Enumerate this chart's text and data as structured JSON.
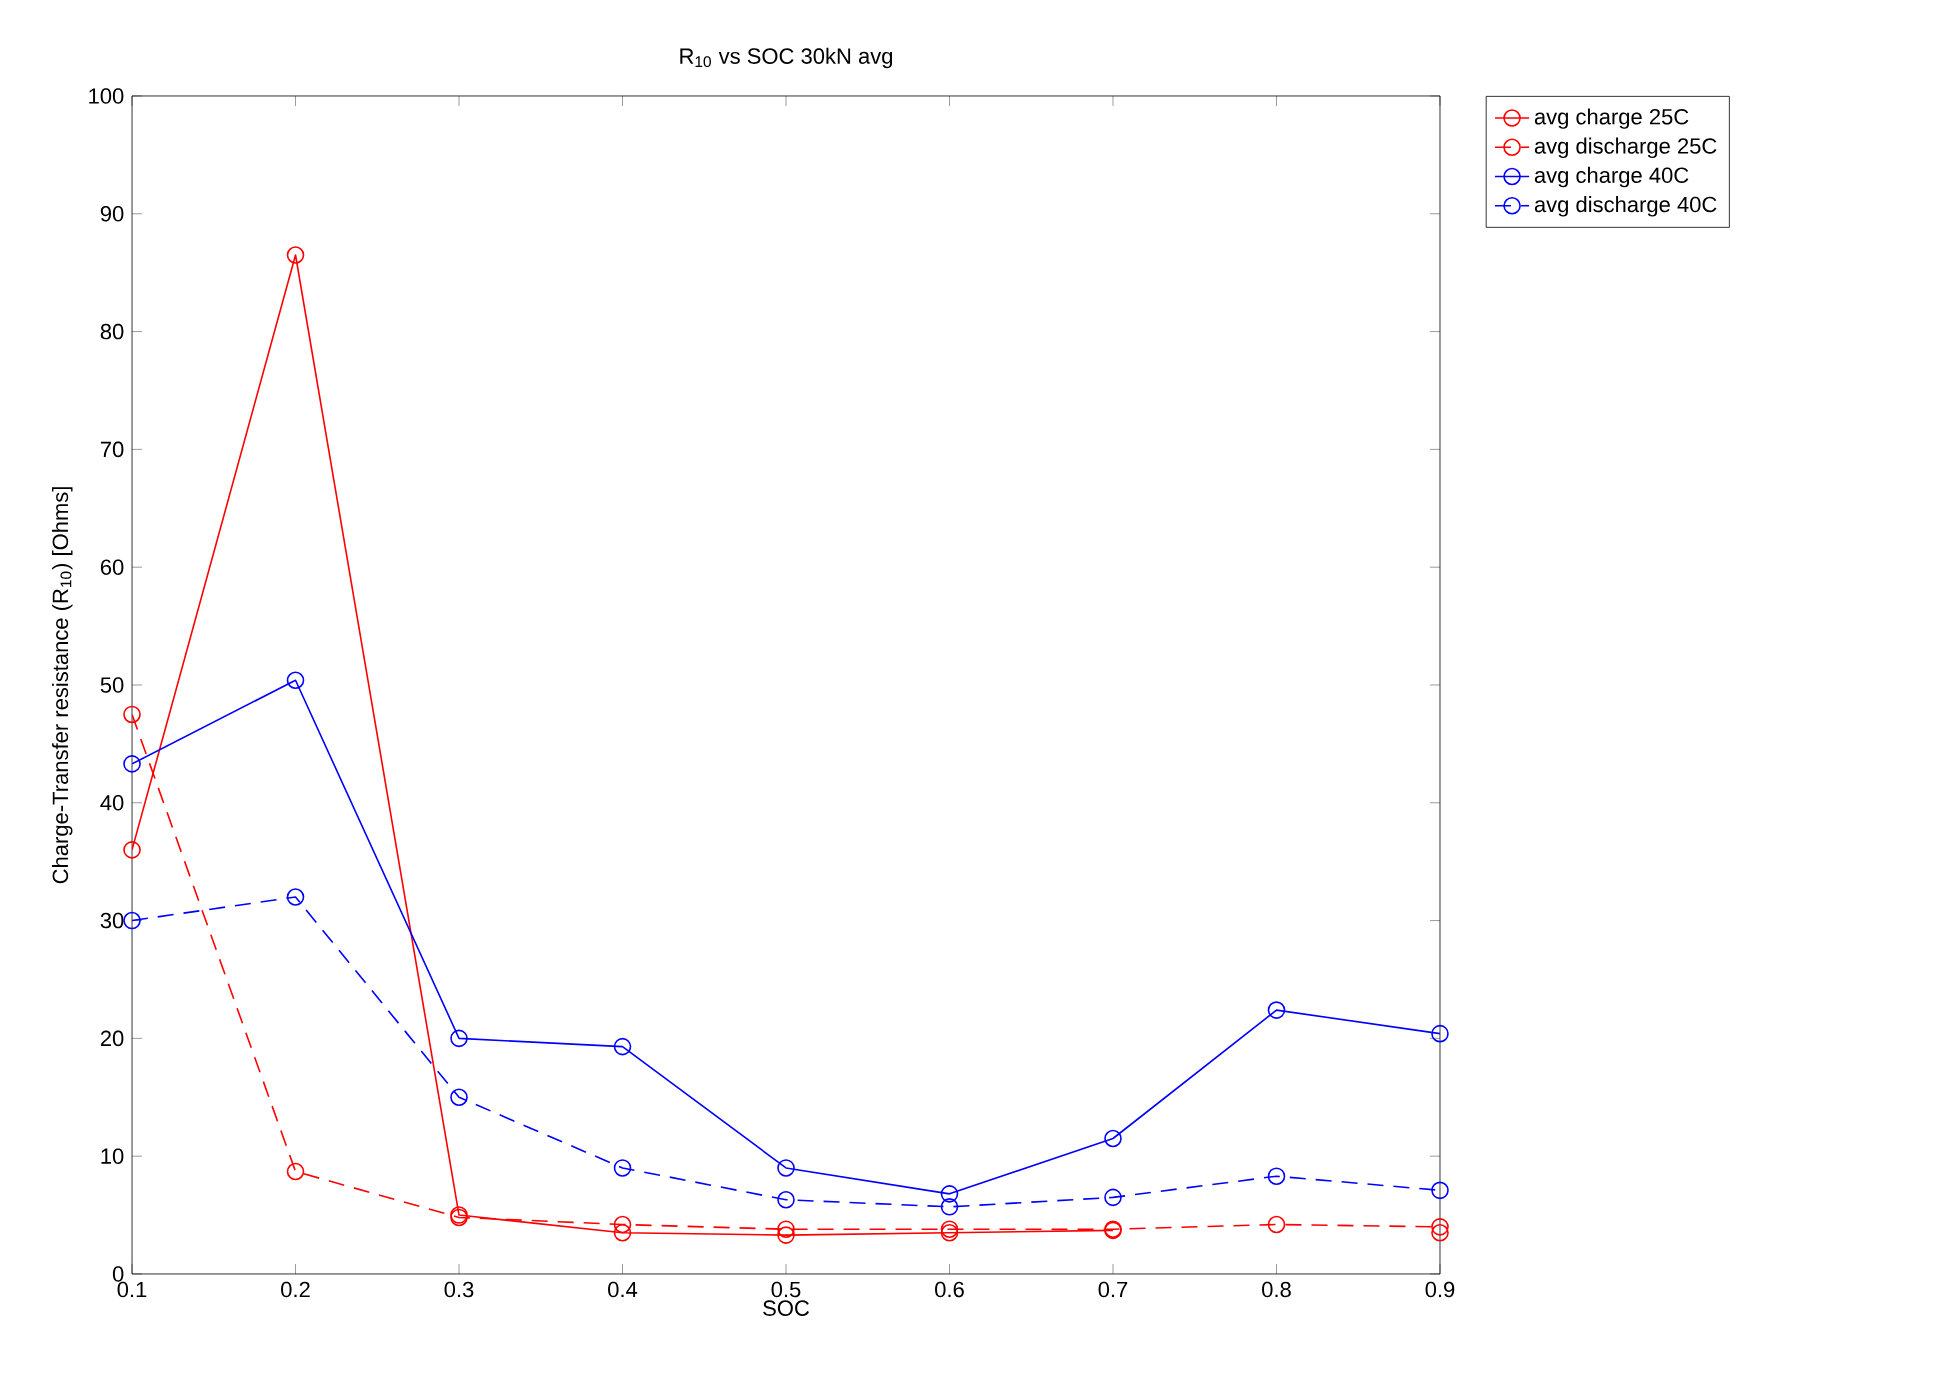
{
  "chart_data": {
    "type": "line",
    "title": "R$_{10}$ vs SOC 30kN avg",
    "xlabel": "SOC",
    "ylabel": "Charge-Transfer resistance (R$_{10}$) [Ohms]",
    "x": [
      0.1,
      0.2,
      0.3,
      0.4,
      0.5,
      0.6,
      0.7,
      0.8,
      0.9
    ],
    "series": [
      {
        "name": "avg charge 25C",
        "color": "#ff0000",
        "line_style": "solid",
        "values": [
          36,
          86.5,
          5,
          3.5,
          3.3,
          3.5,
          3.7,
          null,
          3.5
        ]
      },
      {
        "name": "avg discharge 25C",
        "color": "#ff0000",
        "line_style": "dashed",
        "values": [
          47.5,
          8.7,
          4.8,
          4.2,
          3.8,
          3.8,
          3.8,
          4.2,
          4.0
        ]
      },
      {
        "name": "avg charge 40C",
        "color": "#0000ff",
        "line_style": "solid",
        "values": [
          43.3,
          50.4,
          20,
          19.3,
          9,
          6.8,
          11.5,
          22.4,
          20.4
        ]
      },
      {
        "name": "avg discharge 40C",
        "color": "#0000ff",
        "line_style": "dashed",
        "values": [
          30,
          32,
          15,
          9,
          6.3,
          5.7,
          6.5,
          8.3,
          7.1
        ]
      }
    ],
    "xlim": [
      0.1,
      0.9
    ],
    "xticks": [
      0.1,
      0.2,
      0.3,
      0.4,
      0.5,
      0.6,
      0.7,
      0.8,
      0.9
    ],
    "ylim": [
      0,
      100
    ],
    "yticks": [
      0,
      10,
      20,
      30,
      40,
      50,
      60,
      70,
      80,
      90,
      100
    ],
    "marker": "circle",
    "grid": false,
    "legend": "top right"
  }
}
